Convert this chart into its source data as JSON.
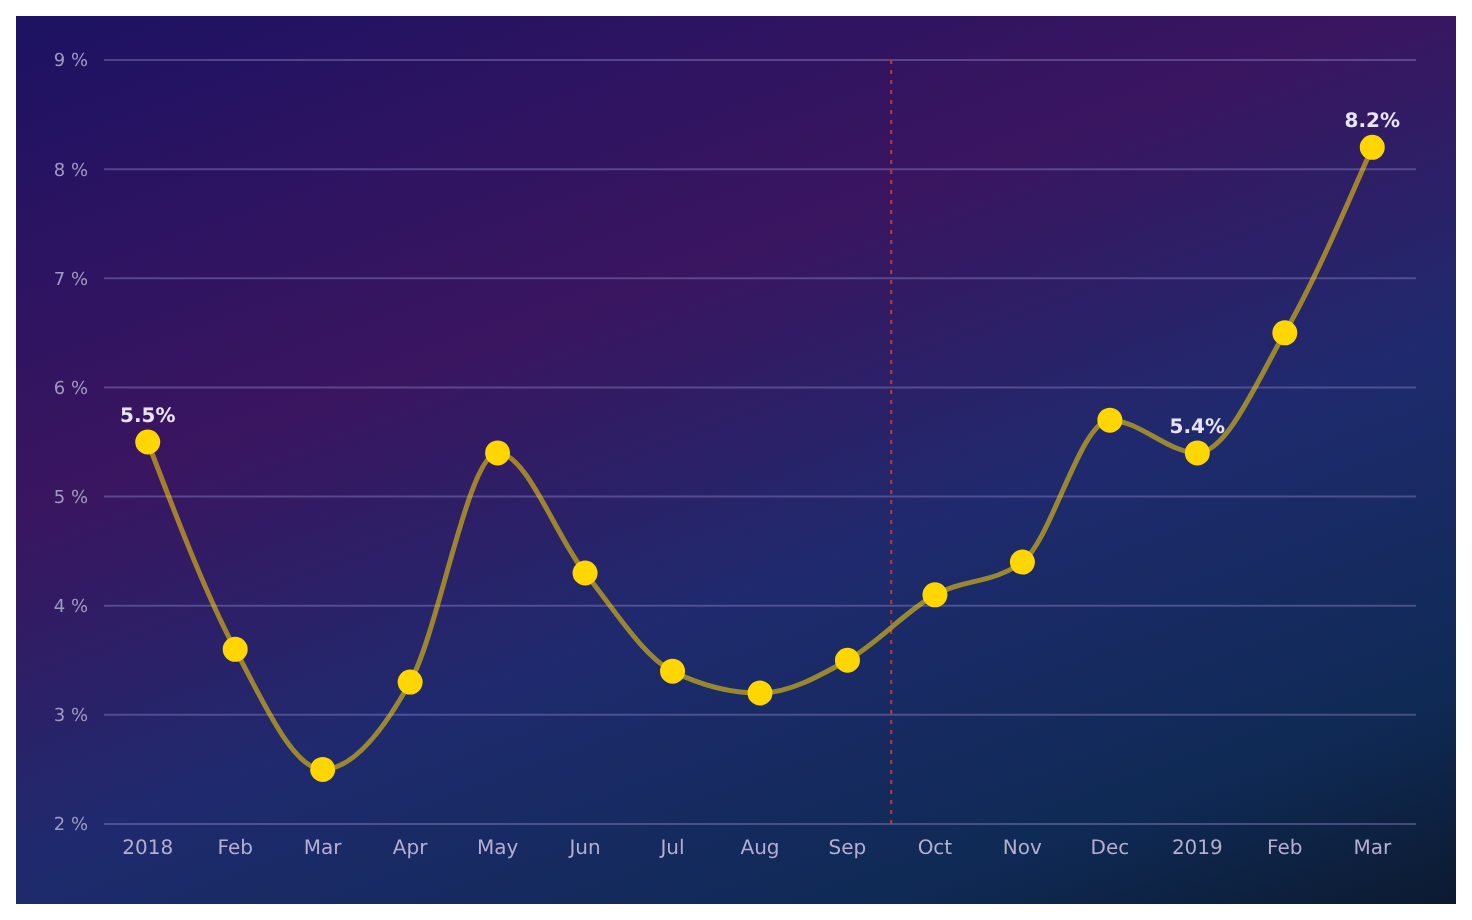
{
  "chart_data": {
    "type": "line",
    "categories": [
      "2018",
      "Feb",
      "Mar",
      "Apr",
      "May",
      "Jun",
      "Jul",
      "Aug",
      "Sep",
      "Oct",
      "Nov",
      "Dec",
      "2019",
      "Feb",
      "Mar"
    ],
    "series": [
      {
        "color": "#ffd600",
        "values": [
          5.5,
          3.6,
          2.5,
          3.3,
          5.4,
          4.3,
          3.4,
          3.2,
          3.5,
          4.1,
          4.4,
          5.7,
          5.4,
          6.5,
          8.2
        ],
        "value_labels": [
          "5.5%",
          null,
          null,
          null,
          null,
          null,
          null,
          null,
          null,
          null,
          null,
          null,
          "5.4%",
          null,
          "8.2%"
        ]
      }
    ],
    "ylim": [
      2,
      9
    ],
    "yticks": [
      {
        "value": 2,
        "label": "2 %"
      },
      {
        "value": 3,
        "label": "3 %"
      },
      {
        "value": 4,
        "label": "4 %"
      },
      {
        "value": 5,
        "label": "5 %"
      },
      {
        "value": 6,
        "label": "6 %"
      },
      {
        "value": 7,
        "label": "7 %"
      },
      {
        "value": 8,
        "label": "8 %"
      },
      {
        "value": 9,
        "label": "9 %"
      }
    ],
    "grid": "y",
    "marker": "circle",
    "line_style": "solid",
    "ref_lines": [
      {
        "axis": "x",
        "value": "Sep",
        "color": "#c0392b",
        "line_style": "dotted"
      }
    ]
  }
}
